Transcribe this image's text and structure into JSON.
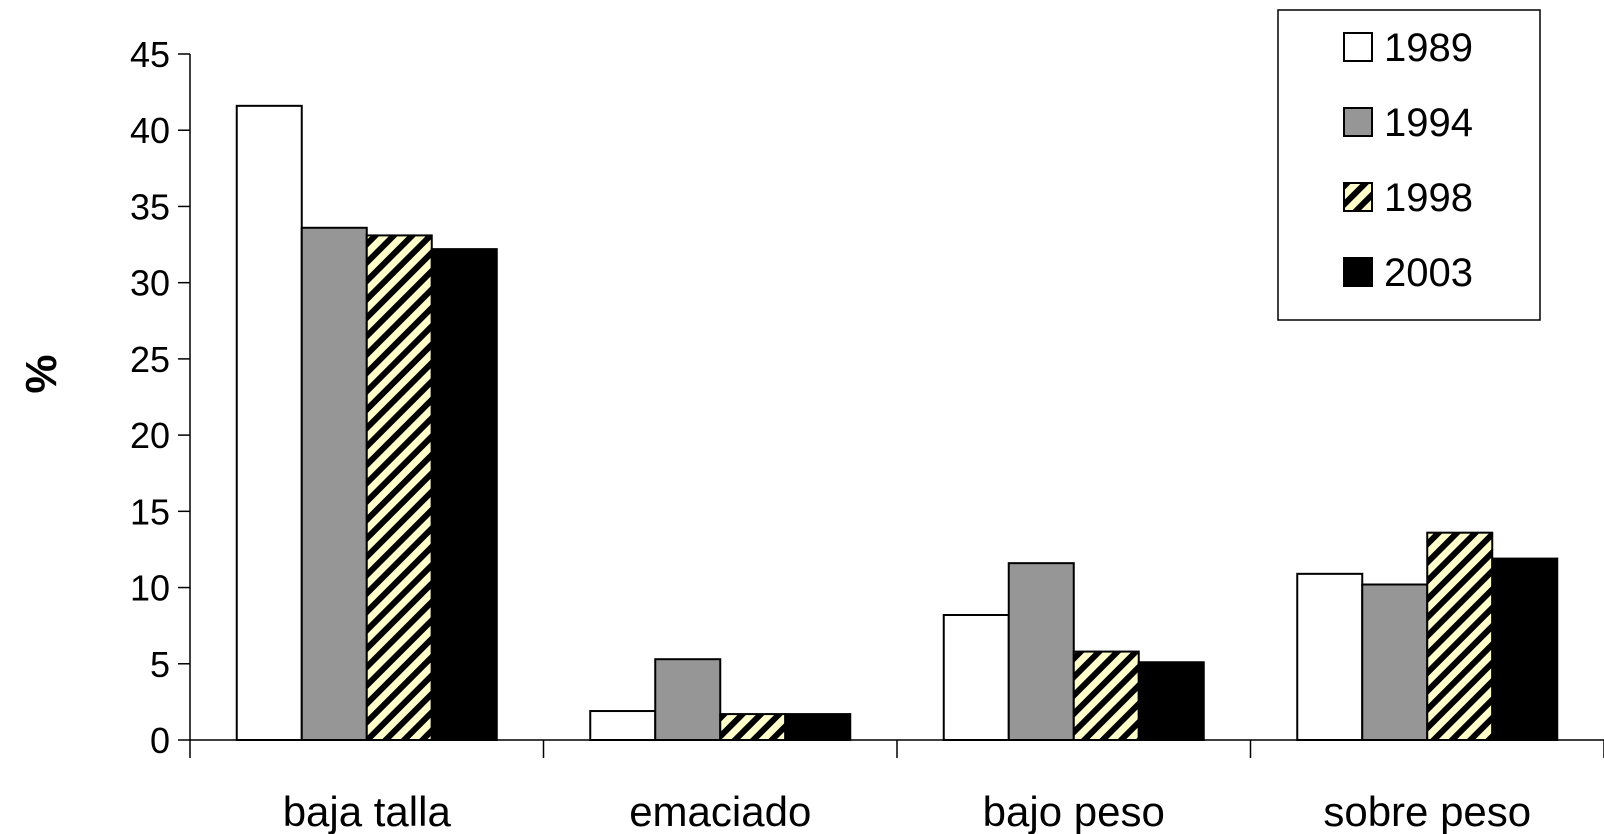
{
  "chart_data": {
    "type": "bar",
    "title": "",
    "xlabel": "",
    "ylabel": "%",
    "ylim": [
      0,
      45
    ],
    "yticks": [
      "0",
      "5",
      "10",
      "15",
      "20",
      "25",
      "30",
      "35",
      "40",
      "45"
    ],
    "grid": false,
    "legend_position": "top-right",
    "categories": [
      "baja talla",
      "emaciado",
      "bajo peso",
      "sobre peso"
    ],
    "series": [
      {
        "name": "1989",
        "values": [
          41.6,
          1.9,
          8.2,
          10.9
        ],
        "fill": "#ffffff",
        "pattern": "none"
      },
      {
        "name": "1994",
        "values": [
          33.6,
          5.3,
          11.6,
          10.2
        ],
        "fill": "#969696",
        "pattern": "none"
      },
      {
        "name": "1998",
        "values": [
          33.1,
          1.7,
          5.8,
          13.6
        ],
        "fill": "#ffffcc",
        "pattern": "diagonal-stripes"
      },
      {
        "name": "2003",
        "values": [
          32.2,
          1.7,
          5.1,
          11.9
        ],
        "fill": "#000000",
        "pattern": "none"
      }
    ]
  }
}
